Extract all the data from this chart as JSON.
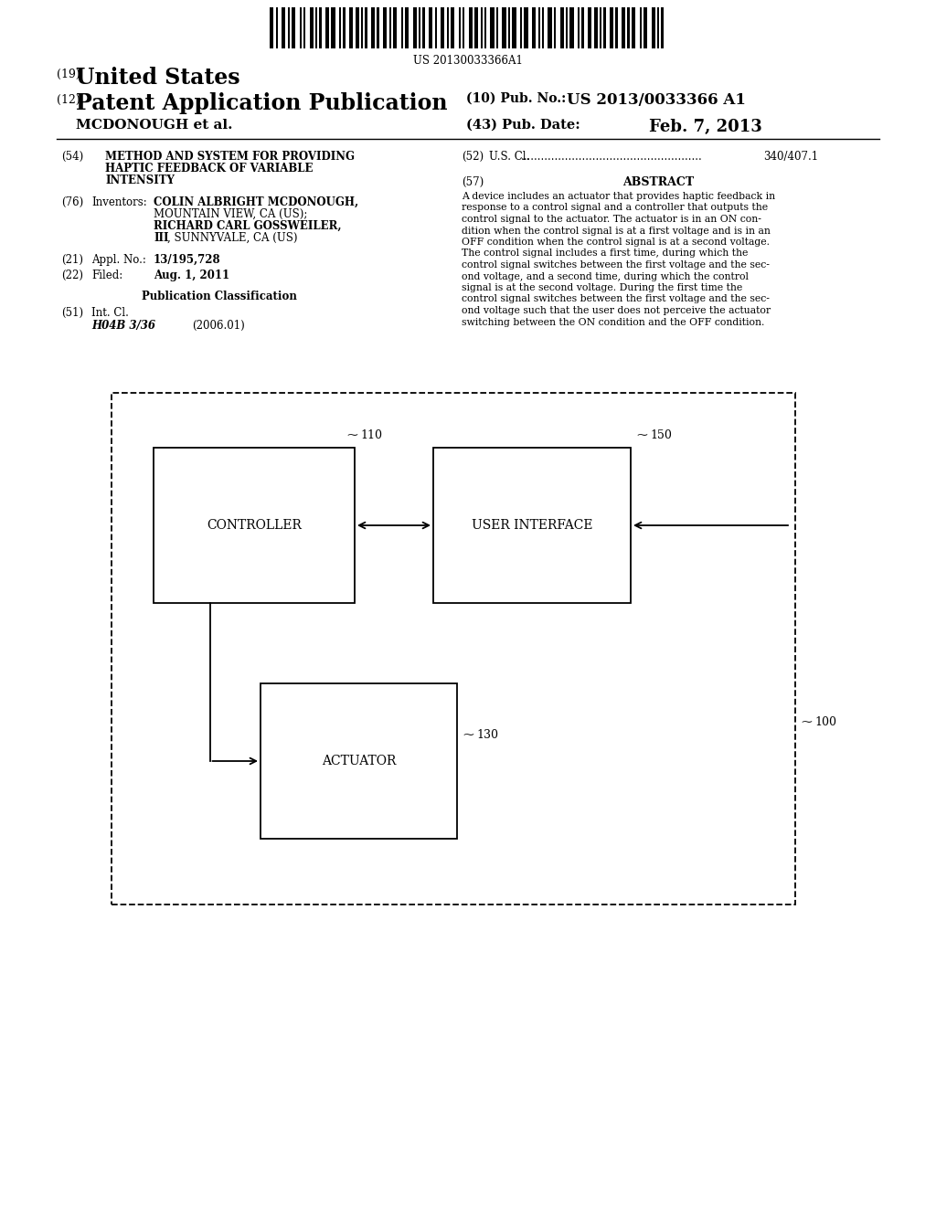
{
  "background_color": "#ffffff",
  "barcode_text": "US 20130033366A1",
  "title_19": "(19)",
  "title_country": "United States",
  "title_12": "(12)",
  "title_pub": "Patent Application Publication",
  "title_10_a": "(10) Pub. No.:",
  "title_10_b": "US 2013/0033366 A1",
  "mcdonough": "MCDONOUGH et al.",
  "title_43": "(43) Pub. Date:",
  "pub_date": "Feb. 7, 2013",
  "line54_num": "(54)",
  "line54_line1": "METHOD AND SYSTEM FOR PROVIDING",
  "line54_line2": "HAPTIC FEEDBACK OF VARIABLE",
  "line54_line3": "INTENSITY",
  "line52_num": "(52)",
  "line52_label": "U.S. Cl.",
  "line52_dots": ".....................................................",
  "line52_val": "340/407.1",
  "line57_num": "(57)",
  "line57_title": "ABSTRACT",
  "abstract_lines": [
    "A device includes an actuator that provides haptic feedback in",
    "response to a control signal and a controller that outputs the",
    "control signal to the actuator. The actuator is in an ON con-",
    "dition when the control signal is at a first voltage and is in an",
    "OFF condition when the control signal is at a second voltage.",
    "The control signal includes a first time, during which the",
    "control signal switches between the first voltage and the sec-",
    "ond voltage, and a second time, during which the control",
    "signal is at the second voltage. During the first time the",
    "control signal switches between the first voltage and the sec-",
    "ond voltage such that the user does not perceive the actuator",
    "switching between the ON condition and the OFF condition."
  ],
  "line76_num": "(76)",
  "line76_label": "Inventors:",
  "inv_line1": "COLIN ALBRIGHT MCDONOUGH,",
  "inv_line1_bold": true,
  "inv_line2": "MOUNTAIN VIEW, CA (US);",
  "inv_line2_bold": false,
  "inv_line3": "RICHARD CARL GOSSWEILER,",
  "inv_line3_bold": true,
  "inv_line4a": "III",
  "inv_line4a_bold": true,
  "inv_line4b": ", SUNNYVALE, CA (US)",
  "inv_line4b_bold": false,
  "line21_num": "(21)",
  "line21_label": "Appl. No.:",
  "line21_val": "13/195,728",
  "line22_num": "(22)",
  "line22_label": "Filed:",
  "line22_val": "Aug. 1, 2011",
  "pub_class_title": "Publication Classification",
  "line51_num": "(51)",
  "line51_label": "Int. Cl.",
  "line51_class": "H04B 3/36",
  "line51_year": "(2006.01)",
  "label_110": "110",
  "label_150": "150",
  "label_100": "100",
  "label_130": "130",
  "label_controller": "CONTROLLER",
  "label_user_interface": "USER INTERFACE",
  "label_actuator": "ACTUATOR"
}
